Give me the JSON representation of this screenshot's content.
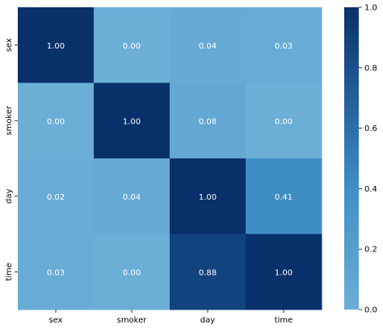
{
  "chart_data": {
    "type": "heatmap",
    "x_labels": [
      "sex",
      "smoker",
      "day",
      "time"
    ],
    "y_labels": [
      "sex",
      "smoker",
      "day",
      "time"
    ],
    "values": [
      [
        1.0,
        0.0,
        0.04,
        0.03
      ],
      [
        0.0,
        1.0,
        0.08,
        0.0
      ],
      [
        0.02,
        0.04,
        1.0,
        0.41
      ],
      [
        0.03,
        0.0,
        0.88,
        1.0
      ]
    ],
    "annotations": [
      [
        "1.00",
        "0.00",
        "0.04",
        "0.03"
      ],
      [
        "0.00",
        "1.00",
        "0.08",
        "0.00"
      ],
      [
        "0.02",
        "0.04",
        "1.00",
        "0.41"
      ],
      [
        "0.03",
        "0.00",
        "0.88",
        "1.00"
      ]
    ],
    "colorbar": {
      "range": [
        0.0,
        1.0
      ],
      "ticks": [
        "0.0",
        "0.2",
        "0.4",
        "0.6",
        "0.8",
        "1.0"
      ],
      "colormap": "Blues",
      "low_color": "#6baed6",
      "mid_color": "#3f8fc5",
      "high_color": "#08306b"
    },
    "annotation_color": "#ffffff",
    "grid": false
  }
}
